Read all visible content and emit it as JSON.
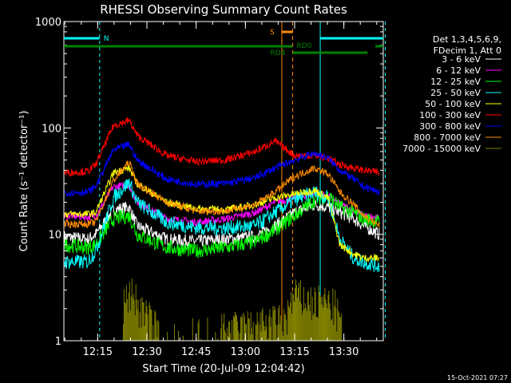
{
  "chart_data": {
    "type": "line",
    "title": "RHESSI Observing Summary Count Rates",
    "ylabel": "Count Rate (s⁻¹ detector⁻¹)",
    "xlabel": "Start Time (20-Jul-09 12:04:42)",
    "yscale": "log",
    "ylim": [
      1,
      1000
    ],
    "xlim": [
      "12:04:42",
      "13:42:00"
    ],
    "ytick_labels": [
      "1",
      "10",
      "100",
      "1000"
    ],
    "xtick_labels": [
      "12:15",
      "12:30",
      "12:45",
      "13:00",
      "13:15",
      "13:30"
    ],
    "legend_header": [
      "Det 1,3,4,5,6,9,",
      "FDecim 1, Att 0"
    ],
    "legend_position": "right",
    "timestamp": "15-Oct-2021 07:27",
    "annotations": [
      {
        "label": "N",
        "color": "#00ffff"
      },
      {
        "label": "S",
        "color": "#ff8c00"
      },
      {
        "label": "RD0",
        "color": "#008000"
      },
      {
        "label": "RD4",
        "color": "#008000"
      }
    ],
    "series": [
      {
        "name": "3 - 6 keV",
        "color": "#ffffff",
        "values": [
          [
            12.08,
            9.5
          ],
          [
            12.2,
            9
          ],
          [
            12.24,
            10
          ],
          [
            12.33,
            17
          ],
          [
            12.41,
            18
          ],
          [
            12.45,
            12
          ],
          [
            12.6,
            9
          ],
          [
            12.75,
            8.6
          ],
          [
            12.9,
            9
          ],
          [
            13.05,
            9.5
          ],
          [
            13.15,
            12
          ],
          [
            13.25,
            16
          ],
          [
            13.35,
            19
          ],
          [
            13.42,
            18
          ],
          [
            13.48,
            16
          ],
          [
            13.55,
            14
          ],
          [
            13.6,
            12
          ],
          [
            13.68,
            10
          ]
        ]
      },
      {
        "name": "6 - 12 keV",
        "color": "#ff00ff",
        "values": [
          [
            12.08,
            15
          ],
          [
            12.2,
            14.5
          ],
          [
            12.24,
            15
          ],
          [
            12.33,
            28
          ],
          [
            12.41,
            29
          ],
          [
            12.45,
            20
          ],
          [
            12.6,
            14
          ],
          [
            12.75,
            13
          ],
          [
            12.9,
            14
          ],
          [
            13.05,
            16
          ],
          [
            13.15,
            20
          ],
          [
            13.25,
            22
          ],
          [
            13.35,
            24
          ],
          [
            13.42,
            23
          ],
          [
            13.48,
            19
          ],
          [
            13.55,
            17
          ],
          [
            13.6,
            15
          ],
          [
            13.68,
            14
          ]
        ]
      },
      {
        "name": "12 - 25 keV",
        "color": "#00ff00",
        "values": [
          [
            12.08,
            8
          ],
          [
            12.2,
            7.5
          ],
          [
            12.24,
            8
          ],
          [
            12.33,
            14
          ],
          [
            12.41,
            15
          ],
          [
            12.45,
            10
          ],
          [
            12.6,
            7.5
          ],
          [
            12.75,
            7
          ],
          [
            12.9,
            7.5
          ],
          [
            13.05,
            8.5
          ],
          [
            13.15,
            11
          ],
          [
            13.25,
            15
          ],
          [
            13.35,
            21
          ],
          [
            13.42,
            23
          ],
          [
            13.48,
            18
          ],
          [
            13.55,
            16
          ],
          [
            13.6,
            14
          ],
          [
            13.68,
            13
          ]
        ]
      },
      {
        "name": "25 - 50 keV",
        "color": "#00ffff",
        "values": [
          [
            12.08,
            5.5
          ],
          [
            12.2,
            5.5
          ],
          [
            12.24,
            7
          ],
          [
            12.33,
            22
          ],
          [
            12.41,
            31
          ],
          [
            12.45,
            20
          ],
          [
            12.6,
            13
          ],
          [
            12.75,
            11.5
          ],
          [
            12.9,
            11.5
          ],
          [
            13.05,
            12
          ],
          [
            13.15,
            16
          ],
          [
            13.25,
            21
          ],
          [
            13.35,
            25
          ],
          [
            13.42,
            22
          ],
          [
            13.48,
            9
          ],
          [
            13.55,
            6
          ],
          [
            13.6,
            5.5
          ],
          [
            13.68,
            5
          ]
        ]
      },
      {
        "name": "50 - 100 keV",
        "color": "#ffff00",
        "values": [
          [
            12.08,
            15.5
          ],
          [
            12.2,
            15.5
          ],
          [
            12.24,
            16
          ],
          [
            12.33,
            38
          ],
          [
            12.41,
            42
          ],
          [
            12.45,
            30
          ],
          [
            12.6,
            20
          ],
          [
            12.75,
            17.5
          ],
          [
            12.9,
            17
          ],
          [
            13.05,
            19
          ],
          [
            13.15,
            22
          ],
          [
            13.25,
            24
          ],
          [
            13.35,
            26
          ],
          [
            13.42,
            22
          ],
          [
            13.48,
            8
          ],
          [
            13.55,
            6.5
          ],
          [
            13.6,
            6
          ],
          [
            13.68,
            6
          ]
        ]
      },
      {
        "name": "100 - 300 keV",
        "color": "#ff0000",
        "values": [
          [
            12.08,
            38
          ],
          [
            12.2,
            39
          ],
          [
            12.24,
            45
          ],
          [
            12.33,
            105
          ],
          [
            12.41,
            118
          ],
          [
            12.45,
            85
          ],
          [
            12.6,
            55
          ],
          [
            12.75,
            48
          ],
          [
            12.9,
            50
          ],
          [
            13.05,
            60
          ],
          [
            13.15,
            75
          ],
          [
            13.25,
            55
          ],
          [
            13.35,
            55
          ],
          [
            13.42,
            52
          ],
          [
            13.48,
            45
          ],
          [
            13.55,
            42
          ],
          [
            13.6,
            40
          ],
          [
            13.68,
            38
          ]
        ]
      },
      {
        "name": "300 - 800 keV",
        "color": "#0000ff",
        "values": [
          [
            12.08,
            24.5
          ],
          [
            12.2,
            25
          ],
          [
            12.24,
            28
          ],
          [
            12.33,
            62
          ],
          [
            12.41,
            70
          ],
          [
            12.45,
            50
          ],
          [
            12.6,
            33
          ],
          [
            12.75,
            29.5
          ],
          [
            12.9,
            30
          ],
          [
            13.05,
            34
          ],
          [
            13.15,
            42
          ],
          [
            13.25,
            50
          ],
          [
            13.35,
            58
          ],
          [
            13.42,
            52
          ],
          [
            13.48,
            40
          ],
          [
            13.55,
            33
          ],
          [
            13.6,
            28
          ],
          [
            13.68,
            25
          ]
        ]
      },
      {
        "name": "800 - 7000 keV",
        "color": "#ff8c00",
        "values": [
          [
            12.08,
            12.5
          ],
          [
            12.2,
            12.5
          ],
          [
            12.24,
            13
          ],
          [
            12.33,
            32
          ],
          [
            12.41,
            48
          ],
          [
            12.45,
            30
          ],
          [
            12.6,
            20
          ],
          [
            12.75,
            16.5
          ],
          [
            12.9,
            16.5
          ],
          [
            13.05,
            19
          ],
          [
            13.15,
            25
          ],
          [
            13.25,
            35
          ],
          [
            13.35,
            42
          ],
          [
            13.42,
            37
          ],
          [
            13.48,
            25
          ],
          [
            13.55,
            19
          ],
          [
            13.6,
            15
          ],
          [
            13.68,
            12
          ]
        ]
      },
      {
        "name": "7000 - 15000 keV",
        "color": "#808000",
        "values": [
          [
            12.38,
            2
          ],
          [
            12.42,
            3
          ],
          [
            12.46,
            2
          ],
          [
            12.6,
            1
          ],
          [
            13.2,
            1.5
          ],
          [
            13.25,
            2.6
          ],
          [
            13.3,
            2.4
          ],
          [
            13.35,
            2.2
          ],
          [
            13.4,
            2.3
          ],
          [
            13.46,
            2
          ],
          [
            13.5,
            1
          ]
        ]
      }
    ]
  }
}
